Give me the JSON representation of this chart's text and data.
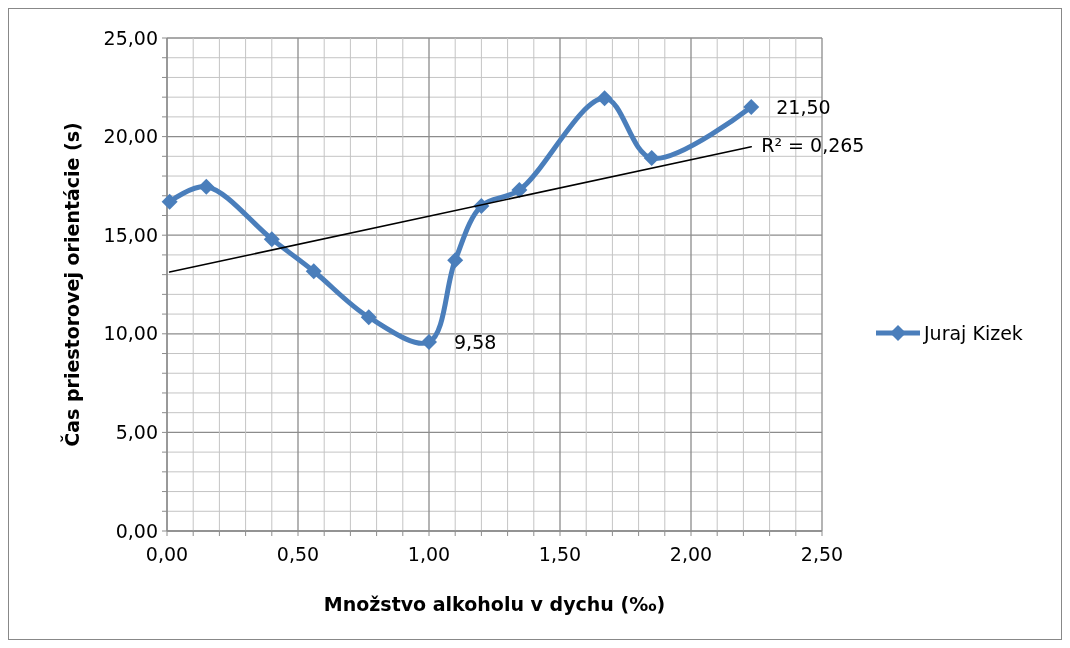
{
  "chart_data": {
    "type": "line",
    "xlabel": "Množstvo alkoholu v dychu (‰)",
    "ylabel": "Čas priestorovej orientácie (s)",
    "xlim": [
      0,
      2.5
    ],
    "xticks": [
      {
        "value": 0,
        "label": "0,00"
      },
      {
        "value": 0.1,
        "label": null
      },
      {
        "value": 0.2,
        "label": null
      },
      {
        "value": 0.3,
        "label": null
      },
      {
        "value": 0.4,
        "label": null
      },
      {
        "value": 0.5,
        "label": "0,50"
      },
      {
        "value": 0.6,
        "label": null
      },
      {
        "value": 0.7,
        "label": null
      },
      {
        "value": 0.8,
        "label": null
      },
      {
        "value": 0.9,
        "label": null
      },
      {
        "value": 1,
        "label": "1,00"
      },
      {
        "value": 1.1,
        "label": null
      },
      {
        "value": 1.2,
        "label": null
      },
      {
        "value": 1.3,
        "label": null
      },
      {
        "value": 1.4,
        "label": null
      },
      {
        "value": 1.5,
        "label": "1,50"
      },
      {
        "value": 1.6,
        "label": null
      },
      {
        "value": 1.7,
        "label": null
      },
      {
        "value": 1.8,
        "label": null
      },
      {
        "value": 1.9,
        "label": null
      },
      {
        "value": 2,
        "label": "2,00"
      },
      {
        "value": 2.1,
        "label": null
      },
      {
        "value": 2.2,
        "label": null
      },
      {
        "value": 2.3,
        "label": null
      },
      {
        "value": 2.4,
        "label": null
      },
      {
        "value": 2.5,
        "label": "2,50"
      }
    ],
    "ylim": [
      0,
      25
    ],
    "yticks": [
      {
        "value": 0,
        "label": "0,00"
      },
      {
        "value": 1,
        "label": null
      },
      {
        "value": 2,
        "label": null
      },
      {
        "value": 3,
        "label": null
      },
      {
        "value": 4,
        "label": null
      },
      {
        "value": 5,
        "label": "5,00"
      },
      {
        "value": 6,
        "label": null
      },
      {
        "value": 7,
        "label": null
      },
      {
        "value": 8,
        "label": null
      },
      {
        "value": 9,
        "label": null
      },
      {
        "value": 10,
        "label": "10,00"
      },
      {
        "value": 11,
        "label": null
      },
      {
        "value": 12,
        "label": null
      },
      {
        "value": 13,
        "label": null
      },
      {
        "value": 14,
        "label": null
      },
      {
        "value": 15,
        "label": "15,00"
      },
      {
        "value": 16,
        "label": null
      },
      {
        "value": 17,
        "label": null
      },
      {
        "value": 18,
        "label": null
      },
      {
        "value": 19,
        "label": null
      },
      {
        "value": 20,
        "label": "20,00"
      },
      {
        "value": 21,
        "label": null
      },
      {
        "value": 22,
        "label": null
      },
      {
        "value": 23,
        "label": null
      },
      {
        "value": 24,
        "label": null
      },
      {
        "value": 25,
        "label": "25,00"
      }
    ],
    "grid": true,
    "legend": "right",
    "marker": "diamond",
    "series": [
      {
        "name": "Juraj Kizek",
        "color": "#4a7ebb",
        "x": [
          0.01,
          0.15,
          0.4,
          0.56,
          0.77,
          1.0,
          1.1,
          1.2,
          1.345,
          1.67,
          1.85,
          2.23
        ],
        "values": [
          16.7,
          17.46,
          14.8,
          13.17,
          10.84,
          9.58,
          13.73,
          16.48,
          17.29,
          21.94,
          18.91,
          21.5
        ],
        "value_labels": [
          null,
          null,
          null,
          null,
          null,
          "9,58",
          null,
          null,
          null,
          null,
          null,
          "21,50"
        ]
      },
      {
        "type": "line",
        "color": "#000000",
        "marker": "none",
        "x": [
          0.01,
          2.23
        ],
        "values": [
          13.13,
          19.49
        ]
      }
    ],
    "annotations": [
      {
        "text": "R² = 0,265",
        "x": 2.23,
        "y": 19.49
      }
    ]
  }
}
